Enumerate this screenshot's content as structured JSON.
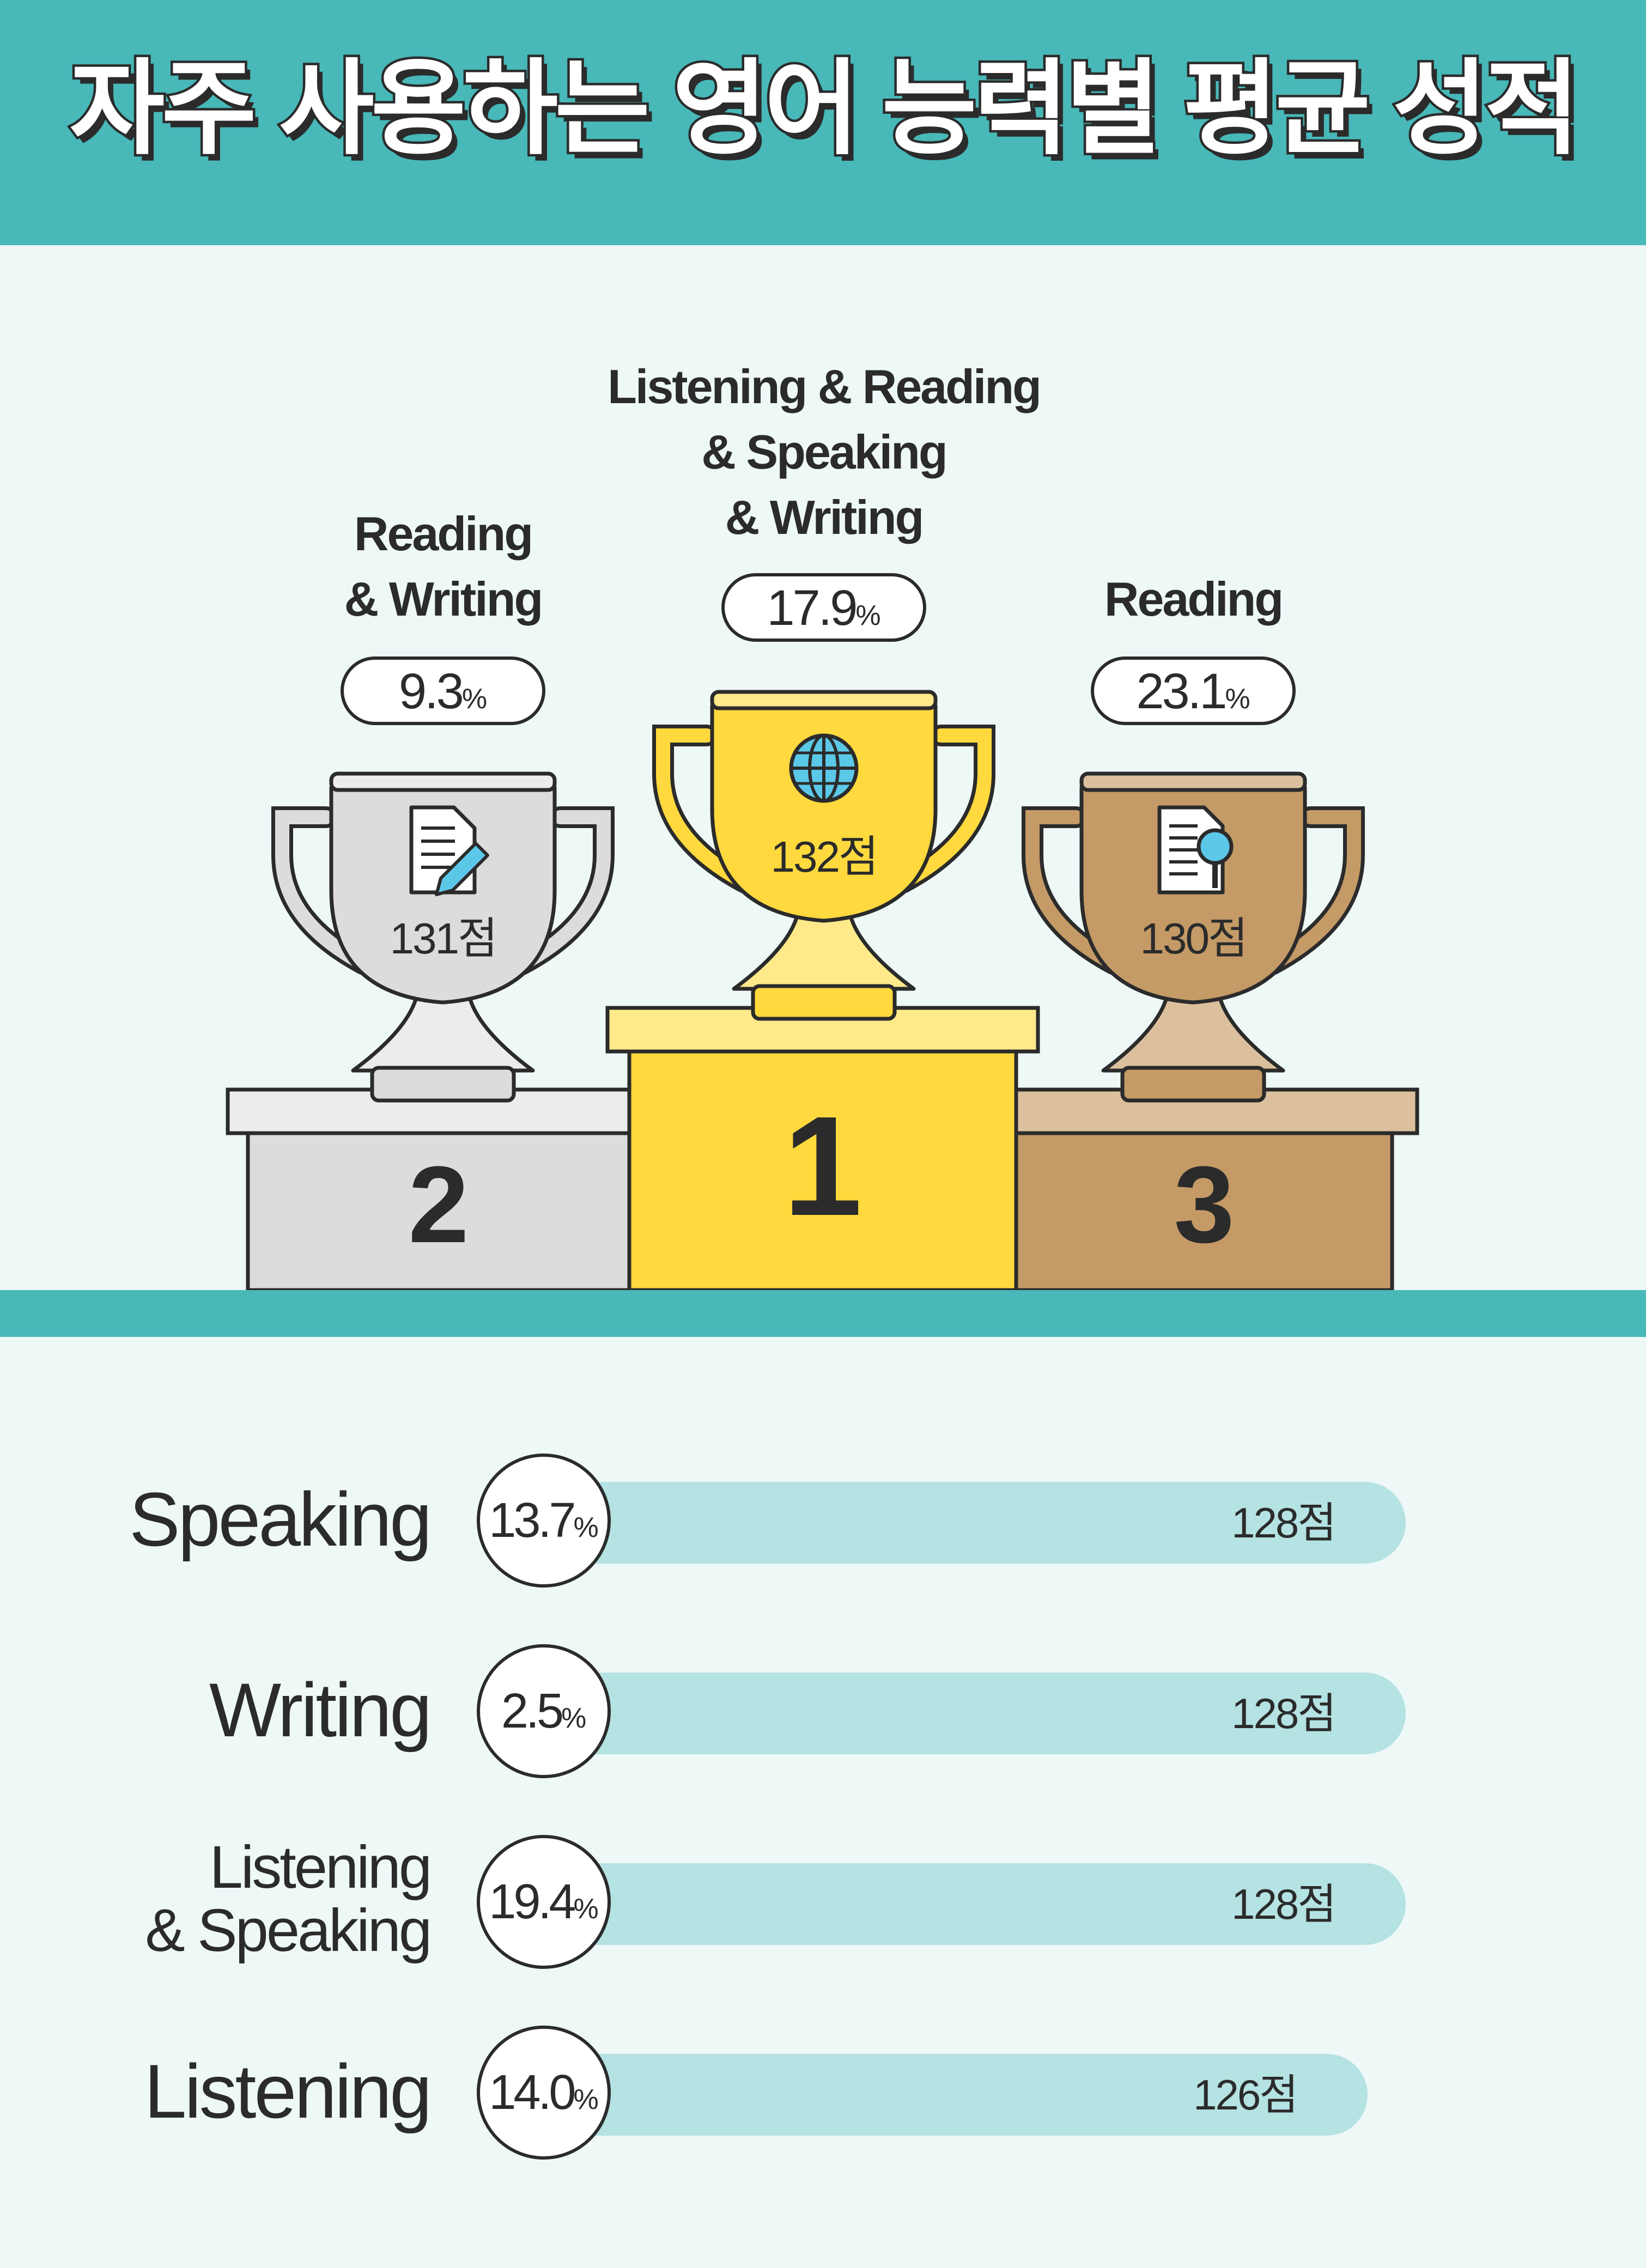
{
  "title": "자주 사용하는 영어 능력별 평균 성적",
  "colors": {
    "teal": "#48b8b9",
    "bar": "#b5e2e2",
    "background": "#edf8f7",
    "gold": "#ffd93d",
    "silver": "#dcdcdc",
    "bronze": "#c49a66",
    "ink": "#2b2b2b"
  },
  "podium": [
    {
      "rank": "1",
      "label_lines": [
        "Listening & Reading",
        "& Speaking",
        "& Writing"
      ],
      "percent": "17.9",
      "score": "132점",
      "icon": "globe-icon"
    },
    {
      "rank": "2",
      "label_lines": [
        "Reading",
        "& Writing"
      ],
      "percent": "9.3",
      "score": "131점",
      "icon": "document-pencil-icon"
    },
    {
      "rank": "3",
      "label_lines": [
        "Reading"
      ],
      "percent": "23.1",
      "score": "130점",
      "icon": "document-magnifier-icon"
    }
  ],
  "bars": [
    {
      "label_lines": [
        "Speaking"
      ],
      "percent": "13.7",
      "score": "128점"
    },
    {
      "label_lines": [
        "Writing"
      ],
      "percent": "2.5",
      "score": "128점"
    },
    {
      "label_lines": [
        "Listening",
        "& Speaking"
      ],
      "percent": "19.4",
      "score": "128점"
    },
    {
      "label_lines": [
        "Listening"
      ],
      "percent": "14.0",
      "score": "126점"
    }
  ],
  "percent_unit": "%",
  "chart_data": {
    "type": "bar",
    "title": "자주 사용하는 영어 능력별 평균 성적",
    "categories": [
      "Listening & Reading & Speaking & Writing",
      "Reading & Writing",
      "Reading",
      "Speaking",
      "Writing",
      "Listening & Speaking",
      "Listening"
    ],
    "series": [
      {
        "name": "",
        "values": [
          132,
          131,
          130,
          128,
          128,
          128,
          126
        ]
      }
    ],
    "shares_percent": [
      17.9,
      9.3,
      23.1,
      13.7,
      2.5,
      19.4,
      14.0
    ],
    "ranks": [
      1,
      2,
      3,
      null,
      null,
      null,
      null
    ],
    "value_unit": "점",
    "share_unit": "%",
    "grid": false,
    "legend": "none"
  }
}
